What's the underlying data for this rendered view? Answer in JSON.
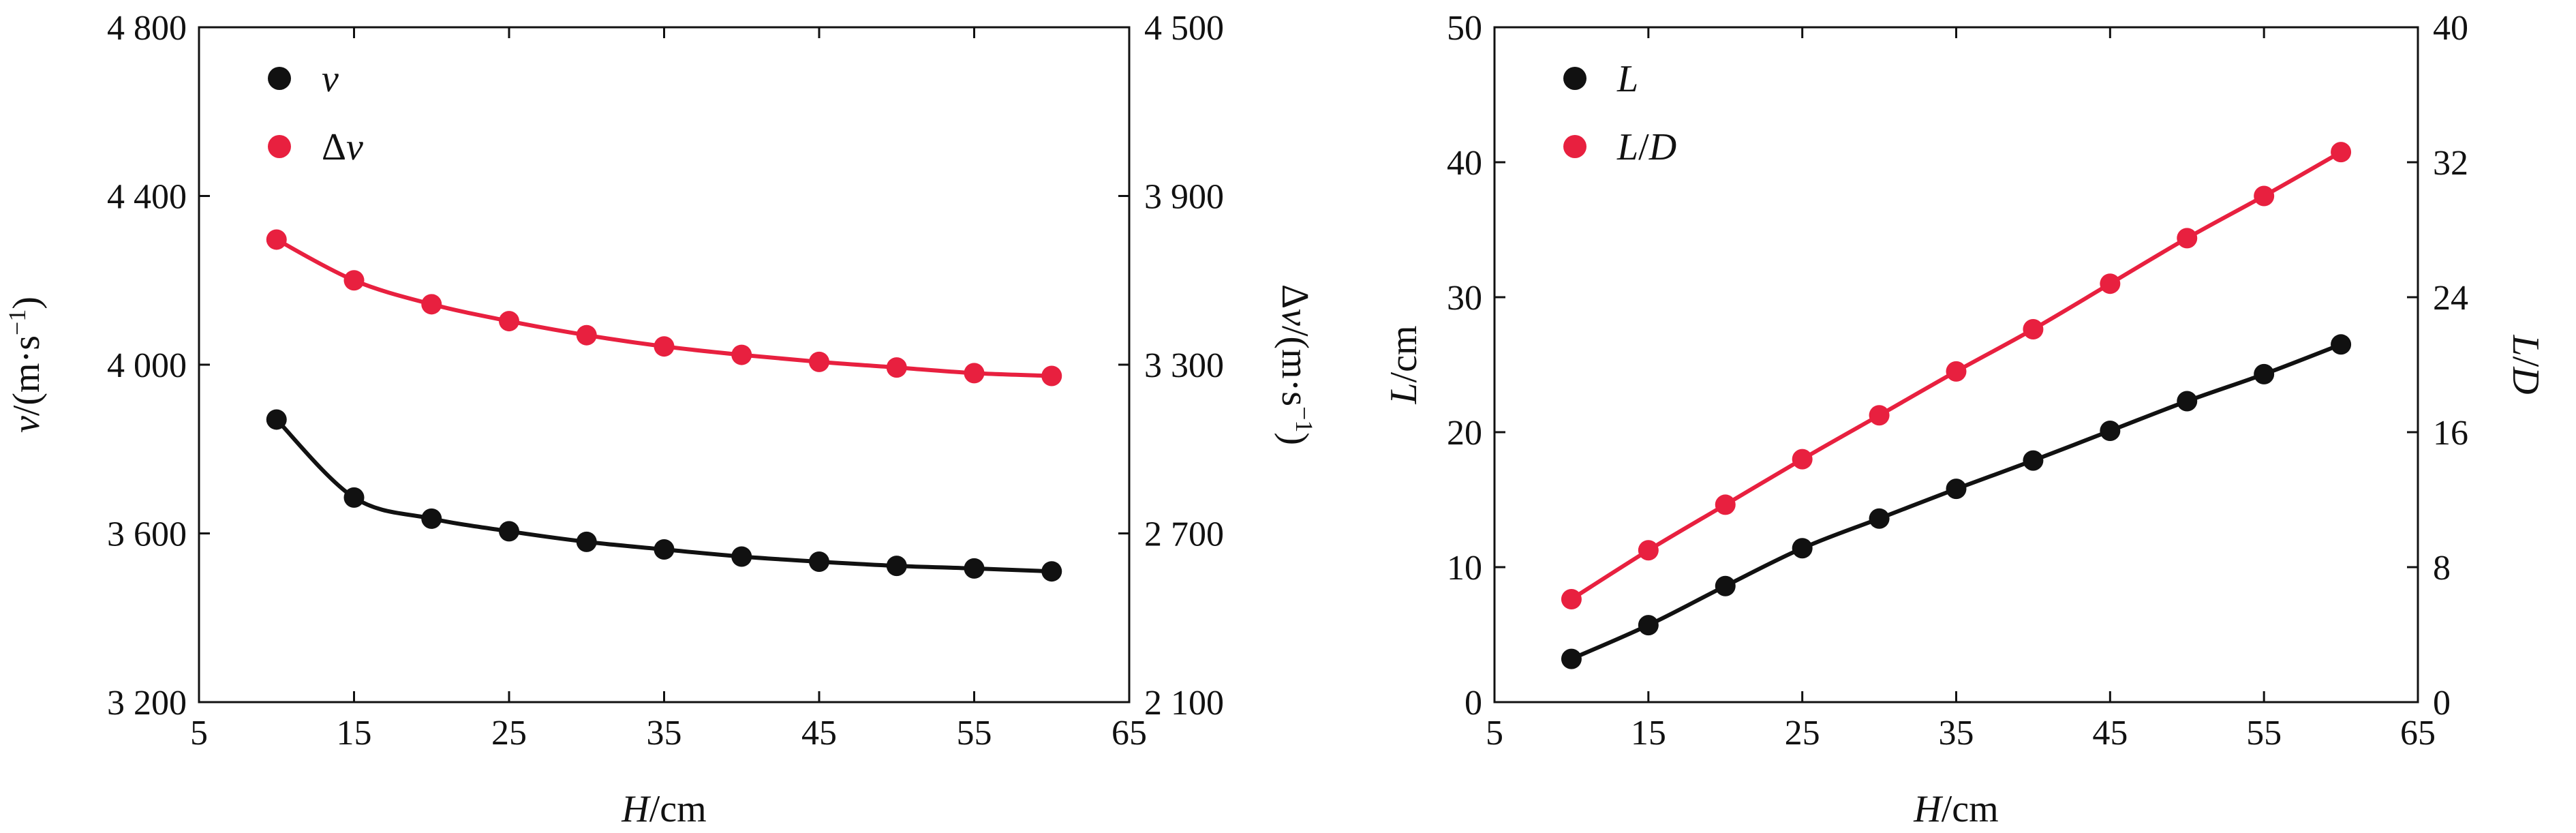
{
  "chart_data": [
    {
      "type": "line",
      "x_label": "H/cm",
      "xlim": [
        5,
        65
      ],
      "x_ticks": [
        5,
        15,
        25,
        35,
        45,
        55,
        65
      ],
      "x": [
        10,
        15,
        20,
        25,
        30,
        35,
        40,
        45,
        50,
        55,
        60
      ],
      "y_left": {
        "label": "v/(m·s⁻¹)",
        "ylim": [
          3200,
          4800
        ],
        "ticks": [
          3200,
          3600,
          4000,
          4400,
          4800
        ],
        "tick_labels": [
          "3 200",
          "3 600",
          "4 000",
          "4 400",
          "4 800"
        ]
      },
      "y_right": {
        "label": "Δv/(m·s⁻¹)",
        "ylim": [
          2100,
          4500
        ],
        "ticks": [
          2100,
          2700,
          3300,
          3900,
          4500
        ],
        "tick_labels": [
          "2 100",
          "2 700",
          "3 300",
          "3 900",
          "4 500"
        ]
      },
      "legend_position": "top-left",
      "series": [
        {
          "name": "v",
          "axis": "left",
          "color": "#111111",
          "values": [
            3870,
            3685,
            3635,
            3605,
            3580,
            3562,
            3545,
            3533,
            3523,
            3517,
            3510
          ]
        },
        {
          "name": "Δv",
          "axis": "right",
          "color": "#e8203f",
          "values": [
            3745,
            3600,
            3515,
            3455,
            3405,
            3365,
            3335,
            3310,
            3290,
            3270,
            3260
          ]
        }
      ]
    },
    {
      "type": "line",
      "x_label": "H/cm",
      "xlim": [
        5,
        65
      ],
      "x_ticks": [
        5,
        15,
        25,
        35,
        45,
        55,
        65
      ],
      "x": [
        10,
        15,
        20,
        25,
        30,
        35,
        40,
        45,
        50,
        55,
        60
      ],
      "y_left": {
        "label": "L/cm",
        "ylim": [
          0,
          50
        ],
        "ticks": [
          0,
          10,
          20,
          30,
          40,
          50
        ],
        "tick_labels": [
          "0",
          "10",
          "20",
          "30",
          "40",
          "50"
        ]
      },
      "y_right": {
        "label": "L/D",
        "ylim": [
          0,
          40
        ],
        "ticks": [
          0,
          8,
          16,
          24,
          32,
          40
        ],
        "tick_labels": [
          "0",
          "8",
          "16",
          "24",
          "32",
          "40"
        ]
      },
      "legend_position": "top-left",
      "series": [
        {
          "name": "L",
          "axis": "left",
          "color": "#111111",
          "values": [
            3.2,
            5.7,
            8.6,
            11.4,
            13.6,
            15.8,
            17.9,
            20.1,
            22.3,
            24.3,
            26.5
          ]
        },
        {
          "name": "L/D",
          "axis": "right",
          "color": "#e8203f",
          "values": [
            6.1,
            9.0,
            11.7,
            14.4,
            17.0,
            19.6,
            22.1,
            24.8,
            27.5,
            30.0,
            32.6
          ]
        }
      ]
    }
  ]
}
